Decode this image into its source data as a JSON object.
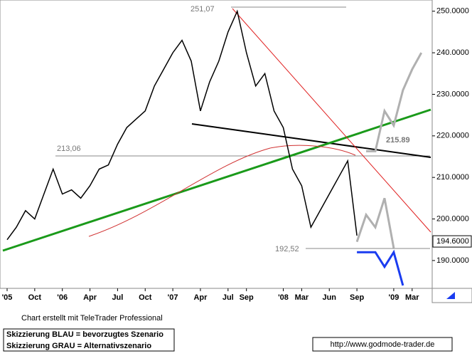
{
  "chart_data": {
    "type": "line",
    "categories": [
      "'05",
      null,
      null,
      "Oct",
      null,
      null,
      "'06",
      null,
      null,
      "Apr",
      null,
      null,
      "Jul",
      null,
      null,
      "Oct",
      null,
      null,
      "'07",
      null,
      null,
      "Apr",
      null,
      null,
      "Jul",
      null,
      "Sep",
      null,
      null,
      null,
      "'08",
      null,
      "Mar",
      null,
      null,
      "Jun",
      null,
      null,
      "Sep",
      null,
      null,
      null,
      "'09",
      null,
      "Mar",
      null
    ],
    "series": [
      {
        "color": "#000000",
        "values": [
          195,
          198,
          202,
          200,
          206,
          212,
          206,
          207,
          205,
          208,
          212,
          213,
          218,
          222,
          224,
          226,
          232,
          236,
          240,
          243,
          238,
          226,
          233,
          238,
          245,
          250,
          240,
          232,
          235,
          226,
          222,
          212,
          208,
          198,
          202,
          206,
          210,
          214,
          196,
          null,
          null,
          null,
          null,
          null,
          null,
          null
        ]
      },
      {
        "color": "#1a3cf0",
        "values": [
          null,
          null,
          null,
          null,
          null,
          null,
          null,
          null,
          null,
          null,
          null,
          null,
          null,
          null,
          null,
          null,
          null,
          null,
          null,
          null,
          null,
          null,
          null,
          null,
          null,
          null,
          null,
          null,
          null,
          null,
          null,
          null,
          null,
          null,
          null,
          null,
          null,
          null,
          192,
          192,
          192,
          188.5,
          192,
          184,
          null,
          null
        ]
      },
      {
        "color": "#b0b0b0",
        "values": [
          null,
          null,
          null,
          null,
          null,
          null,
          null,
          null,
          null,
          null,
          null,
          null,
          null,
          null,
          null,
          null,
          null,
          null,
          null,
          null,
          null,
          null,
          null,
          null,
          null,
          null,
          null,
          null,
          null,
          null,
          null,
          null,
          null,
          null,
          null,
          null,
          null,
          null,
          194.5,
          201,
          198,
          205,
          193,
          null,
          null,
          null
        ]
      },
      {
        "color": "#b0b0b0",
        "values": [
          null,
          null,
          null,
          null,
          null,
          null,
          null,
          null,
          null,
          null,
          null,
          null,
          null,
          null,
          null,
          null,
          null,
          null,
          null,
          null,
          null,
          null,
          null,
          null,
          null,
          null,
          null,
          null,
          null,
          null,
          null,
          null,
          null,
          null,
          null,
          null,
          null,
          null,
          null,
          216.3,
          216.3,
          226,
          222.5,
          231,
          236,
          240
        ]
      }
    ],
    "ylim": [
      183.3,
      252.7
    ],
    "yticks": [
      {
        "value": 190,
        "label": "190.0000"
      },
      {
        "value": 200,
        "label": "200.0000"
      },
      {
        "value": 210,
        "label": "210.0000"
      },
      {
        "value": 220,
        "label": "220.0000"
      },
      {
        "value": 230,
        "label": "230.0000"
      },
      {
        "value": 240,
        "label": "240.0000"
      },
      {
        "value": 250,
        "label": "250.0000"
      }
    ],
    "annotations": [
      "251,07",
      "213,06",
      "192,52",
      "215.89"
    ],
    "last_price": {
      "value": 194.6,
      "label": "194.6000"
    }
  },
  "footer": {
    "credit": "Chart erstellt mit TeleTrader Professional",
    "legend_lines": [
      "Skizzierung BLAU = bevorzugtes Szenario",
      "Skizzierung GRAU = Alternativszenario"
    ],
    "url": "http://www.godmode-trader.de"
  }
}
